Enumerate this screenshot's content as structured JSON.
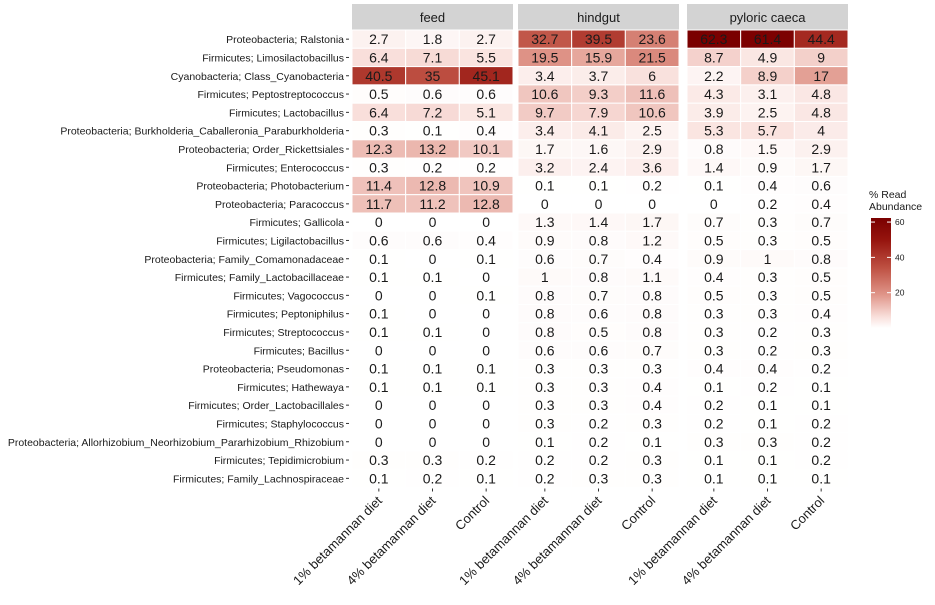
{
  "chart_data": {
    "type": "heatmap",
    "facets": [
      "feed",
      "hindgut",
      "pyloric caeca"
    ],
    "columns": [
      "1% betamannan diet",
      "4% betamannan diet",
      "Control"
    ],
    "rows": [
      "Proteobacteria; Ralstonia",
      "Firmicutes; Limosilactobacillus",
      "Cyanobacteria; Class_Cyanobacteria",
      "Firmicutes; Peptostreptococcus",
      "Firmicutes; Lactobacillus",
      "Proteobacteria; Burkholderia_Caballeronia_Paraburkholderia",
      "Proteobacteria; Order_Rickettsiales",
      "Firmicutes; Enterococcus",
      "Proteobacteria; Photobacterium",
      "Proteobacteria; Paracoccus",
      "Firmicutes; Gallicola",
      "Firmicutes; Ligilactobacillus",
      "Proteobacteria; Family_Comamonadaceae",
      "Firmicutes; Family_Lactobacillaceae",
      "Firmicutes; Vagococcus",
      "Firmicutes; Peptoniphilus",
      "Firmicutes; Streptococcus",
      "Firmicutes; Bacillus",
      "Proteobacteria; Pseudomonas",
      "Firmicutes; Hathewaya",
      "Firmicutes; Order_Lactobacillales",
      "Firmicutes; Staphylococcus",
      "Proteobacteria; Allorhizobium_Neorhizobium_Pararhizobium_Rhizobium",
      "Firmicutes; Tepidimicrobium",
      "Firmicutes; Family_Lachnospiraceae"
    ],
    "values": {
      "feed": [
        [
          2.7,
          1.8,
          2.7
        ],
        [
          6.4,
          7.1,
          5.5
        ],
        [
          40.5,
          35,
          45.1
        ],
        [
          0.5,
          0.6,
          0.6
        ],
        [
          6.4,
          7.2,
          5.1
        ],
        [
          0.3,
          0.1,
          0.4
        ],
        [
          12.3,
          13.2,
          10.1
        ],
        [
          0.3,
          0.2,
          0.2
        ],
        [
          11.4,
          12.8,
          10.9
        ],
        [
          11.7,
          11.2,
          12.8
        ],
        [
          0,
          0,
          0
        ],
        [
          0.6,
          0.6,
          0.4
        ],
        [
          0.1,
          0,
          0.1
        ],
        [
          0.1,
          0.1,
          0
        ],
        [
          0,
          0,
          0.1
        ],
        [
          0.1,
          0,
          0
        ],
        [
          0.1,
          0.1,
          0
        ],
        [
          0,
          0,
          0
        ],
        [
          0.1,
          0.1,
          0.1
        ],
        [
          0.1,
          0.1,
          0.1
        ],
        [
          0,
          0,
          0
        ],
        [
          0,
          0,
          0
        ],
        [
          0,
          0,
          0
        ],
        [
          0.3,
          0.3,
          0.2
        ],
        [
          0.1,
          0.2,
          0.1
        ]
      ],
      "hindgut": [
        [
          32.7,
          39.5,
          23.6
        ],
        [
          19.5,
          15.9,
          21.5
        ],
        [
          3.4,
          3.7,
          6
        ],
        [
          10.6,
          9.3,
          11.6
        ],
        [
          9.7,
          7.9,
          10.6
        ],
        [
          3.4,
          4.1,
          2.5
        ],
        [
          1.7,
          1.6,
          2.9
        ],
        [
          3.2,
          2.4,
          3.6
        ],
        [
          0.1,
          0.1,
          0.2
        ],
        [
          0,
          0,
          0
        ],
        [
          1.3,
          1.4,
          1.7
        ],
        [
          0.9,
          0.8,
          1.2
        ],
        [
          0.6,
          0.7,
          0.4
        ],
        [
          1,
          0.8,
          1.1
        ],
        [
          0.8,
          0.7,
          0.8
        ],
        [
          0.8,
          0.6,
          0.8
        ],
        [
          0.8,
          0.5,
          0.8
        ],
        [
          0.6,
          0.6,
          0.7
        ],
        [
          0.3,
          0.3,
          0.3
        ],
        [
          0.3,
          0.3,
          0.4
        ],
        [
          0.3,
          0.3,
          0.4
        ],
        [
          0.3,
          0.2,
          0.3
        ],
        [
          0.1,
          0.2,
          0.1
        ],
        [
          0.2,
          0.2,
          0.3
        ],
        [
          0.2,
          0.3,
          0.3
        ]
      ],
      "pyloric caeca": [
        [
          62.3,
          61.4,
          44.4
        ],
        [
          8.7,
          4.9,
          9
        ],
        [
          2.2,
          8.9,
          17
        ],
        [
          4.3,
          3.1,
          4.8
        ],
        [
          3.9,
          2.5,
          4.8
        ],
        [
          5.3,
          5.7,
          4
        ],
        [
          0.8,
          1.5,
          2.9
        ],
        [
          1.4,
          0.9,
          1.7
        ],
        [
          0.1,
          0.4,
          0.6
        ],
        [
          0,
          0.2,
          0.4
        ],
        [
          0.7,
          0.3,
          0.7
        ],
        [
          0.5,
          0.3,
          0.5
        ],
        [
          0.9,
          1,
          0.8
        ],
        [
          0.4,
          0.3,
          0.5
        ],
        [
          0.5,
          0.3,
          0.5
        ],
        [
          0.3,
          0.3,
          0.4
        ],
        [
          0.3,
          0.2,
          0.3
        ],
        [
          0.3,
          0.2,
          0.3
        ],
        [
          0.4,
          0.4,
          0.2
        ],
        [
          0.1,
          0.2,
          0.1
        ],
        [
          0.2,
          0.1,
          0.1
        ],
        [
          0.2,
          0.1,
          0.2
        ],
        [
          0.3,
          0.3,
          0.2
        ],
        [
          0.1,
          0.1,
          0.2
        ],
        [
          0.1,
          0.1,
          0.1
        ]
      ]
    },
    "legend": {
      "title_line1": "% Read",
      "title_line2": "Abundance",
      "ticks": [
        20,
        40,
        60
      ],
      "range": [
        0,
        62.3
      ],
      "color_low": "#ffffff",
      "color_high": "#7a0000",
      "placement": "right"
    },
    "colors": {
      "strip_background": "#d3d3d3",
      "cell_border": "#ffffff",
      "text": "#1a1a1a"
    }
  }
}
